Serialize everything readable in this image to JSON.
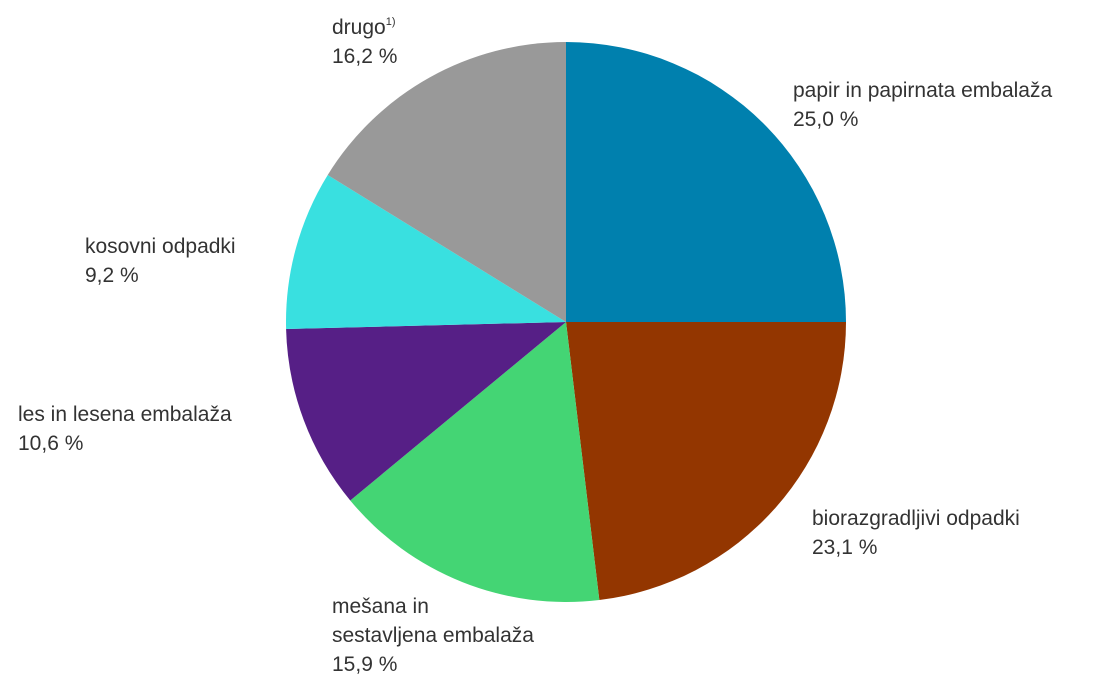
{
  "chart_data": {
    "type": "pie",
    "title": "",
    "slices": [
      {
        "label": "papir in papirnata embalaža",
        "value": 25.0,
        "display": "25,0 %",
        "color": "#0080AE"
      },
      {
        "label": "biorazgradljivi odpadki",
        "value": 23.1,
        "display": "23,1 %",
        "color": "#933600"
      },
      {
        "label": "mešana in sestavljena embalaža",
        "value": 15.9,
        "display": "15,9 %",
        "color": "#44D574"
      },
      {
        "label": "les in lesena embalaža",
        "value": 10.6,
        "display": "10,6 %",
        "color": "#561F86"
      },
      {
        "label": "kosovni odpadki",
        "value": 9.2,
        "display": "9,2 %",
        "color": "#39E0E0"
      },
      {
        "label": "drugo",
        "footnote": "1)",
        "value": 16.2,
        "display": "16,2 %",
        "color": "#999999"
      }
    ],
    "start_position": "12 o'clock",
    "direction": "clockwise",
    "legend": "none"
  }
}
